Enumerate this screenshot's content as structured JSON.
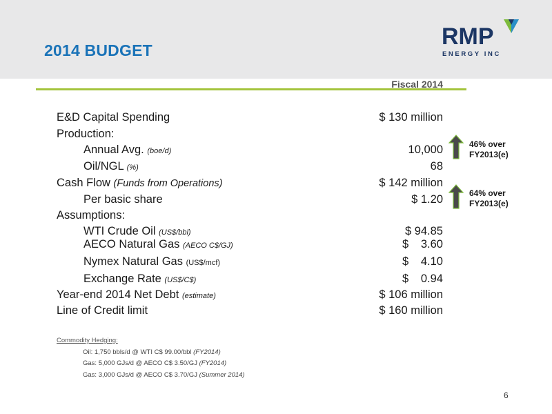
{
  "slide": {
    "title": "2014 BUDGET",
    "page_number": "6",
    "logo": {
      "name": "RMP",
      "tagline": "ENERGY INC"
    },
    "column_header": "Fiscal 2014"
  },
  "rows": [
    {
      "label": "E&D Capital Spending",
      "qualifier": "",
      "value": "$ 130 million"
    },
    {
      "label": "Production:",
      "qualifier": "",
      "value": ""
    },
    {
      "label": "Annual Avg.",
      "qualifier": "(boe/d)",
      "value": "10,000"
    },
    {
      "label": "Oil/NGL",
      "qualifier": "(%)",
      "value": "68"
    },
    {
      "label": "Cash Flow",
      "qualifier": "(Funds from Operations)",
      "value": "$ 142 million"
    },
    {
      "label": "Per basic share",
      "qualifier": "",
      "value": "$ 1.20"
    },
    {
      "label": "Assumptions:",
      "qualifier": "",
      "value": ""
    },
    {
      "label": "WTI Crude Oil",
      "qualifier": "(US$/bbl)",
      "value": "$ 94.85"
    },
    {
      "label": "AECO Natural Gas",
      "qualifier": "(AECO C$/GJ)",
      "dollar": "$",
      "value": "3.60"
    },
    {
      "label": "Nymex Natural Gas",
      "qualifier": "(US$/mcf)",
      "dollar": "$",
      "value": "4.10"
    },
    {
      "label": "Exchange Rate",
      "qualifier": "(US$/C$)",
      "dollar": "$",
      "value": "0.94"
    },
    {
      "label": "Year-end 2014 Net Debt",
      "qualifier": "(estimate)",
      "value": "$ 106 million"
    },
    {
      "label": "Line of Credit limit",
      "qualifier": "",
      "value": "$ 160 million"
    }
  ],
  "notes": [
    {
      "line1": "46% over",
      "line2": "FY2013(e)"
    },
    {
      "line1": "64% over",
      "line2": "FY2013(e)"
    }
  ],
  "hedging": {
    "title": "Commodity Hedging:",
    "items": [
      {
        "text": "Oil: 1,750 bbls/d @ WTI C$ 99.00/bbl",
        "qualifier": "(FY2014)"
      },
      {
        "text": "Gas: 5,000 GJs/d @ AECO C$ 3.50/GJ",
        "qualifier": "(FY2014)"
      },
      {
        "text": "Gas: 3,000 GJs/d @ AECO C$ 3.70/GJ",
        "qualifier": "(Summer 2014)"
      }
    ]
  },
  "colors": {
    "title": "#1a73b8",
    "rule": "#a4c43c",
    "logo": "#1c3664",
    "arrow": "#4a4a4a",
    "arrow_outline": "#7dbb3c"
  }
}
